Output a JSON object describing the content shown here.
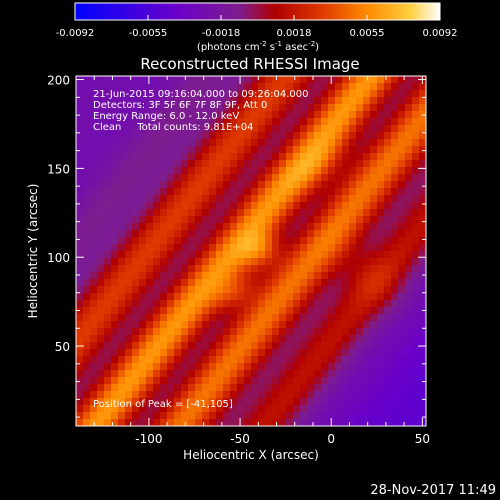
{
  "chart_data": {
    "type": "heatmap",
    "title": "Reconstructed RHESSI Image",
    "xlabel": "Heliocentric X (arcsec)",
    "ylabel": "Heliocentric Y (arcsec)",
    "xlim": [
      -140,
      52
    ],
    "ylim": [
      5,
      202
    ],
    "xticks": [
      -100,
      -50,
      0,
      50
    ],
    "yticks": [
      50,
      100,
      150,
      200
    ],
    "colorbar": {
      "min": -0.0092,
      "max": 0.0092,
      "ticks": [
        "-0.0092",
        "-0.0055",
        "-0.0018",
        "0.0018",
        "0.0055",
        "0.0092"
      ],
      "unit_parts": [
        "(photons cm",
        "-2",
        " s",
        "-1",
        " asec",
        "-2",
        ")"
      ],
      "colors": [
        "#0000ff",
        "#6a00c8",
        "#7d1d8e",
        "#b00000",
        "#e03c00",
        "#ff8a00",
        "#ffd040",
        "#ffffff"
      ]
    },
    "annotations": [
      "21-Jun-2015 09:16:04.000 to 09:26:04.000",
      "Detectors: 3F 5F 6F 7F 8F 9F, Att 0",
      "Energy Range: 6.0 - 12.0 keV",
      "Clean     Total counts: 9.81E+04"
    ],
    "peak_label": "Position of Peak = [-41,105]",
    "peak": [
      -41,
      105
    ]
  },
  "footer": {
    "date": "28-Nov-2017 11:49"
  }
}
